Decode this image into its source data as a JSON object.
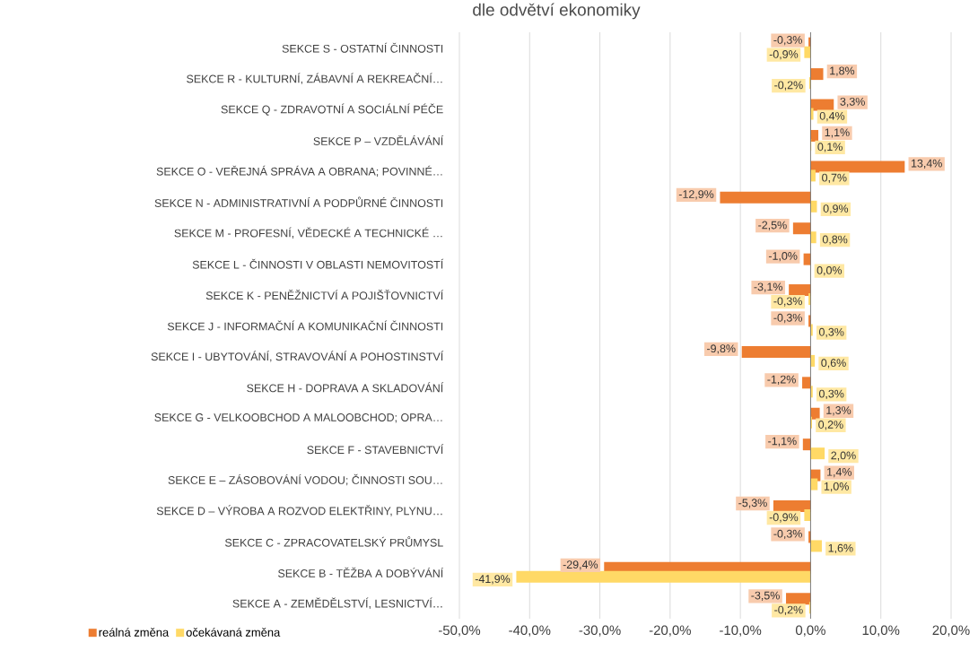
{
  "chart_data": {
    "type": "bar",
    "orientation": "horizontal",
    "title": "dle odvětví ekonomiky",
    "categories": [
      "SEKCE S - OSTATNÍ ČINNOSTI",
      "SEKCE R - KULTURNÍ, ZÁBAVNÍ A REKREAČNÍ…",
      "SEKCE Q - ZDRAVOTNÍ A SOCIÁLNÍ PÉČE",
      "SEKCE P – VZDĚLÁVÁNÍ",
      "SEKCE O - VEŘEJNÁ SPRÁVA A OBRANA; POVINNÉ…",
      "SEKCE N - ADMINISTRATIVNÍ A PODPŮRNÉ ČINNOSTI",
      "SEKCE M - PROFESNÍ, VĚDECKÉ A TECHNICKÉ …",
      "SEKCE L - ČINNOSTI V OBLASTI NEMOVITOSTÍ",
      "SEKCE K - PENĚŽNICTVÍ A POJIŠŤOVNICTVÍ",
      "SEKCE J - INFORMAČNÍ A KOMUNIKAČNÍ ČINNOSTI",
      "SEKCE I - UBYTOVÁNÍ, STRAVOVÁNÍ A POHOSTINSTVÍ",
      "SEKCE H - DOPRAVA A SKLADOVÁNÍ",
      "SEKCE G - VELKOOBCHOD A MALOOBCHOD; OPRA…",
      "SEKCE F - STAVEBNICTVÍ",
      "SEKCE E – ZÁSOBOVÁNÍ VODOU; ČINNOSTI SOU…",
      "SEKCE D – VÝROBA A ROZVOD ELEKTŘINY, PLYNU…",
      "SEKCE C - ZPRACOVATELSKÝ PRŮMYSL",
      "SEKCE B - TĚŽBA A DOBÝVÁNÍ",
      "SEKCE A - ZEMĚDĚLSTVÍ, LESNICTVÍ…"
    ],
    "series": [
      {
        "name": "reálná změna",
        "color": "#ed7d31",
        "values": [
          -0.3,
          1.8,
          3.3,
          1.1,
          13.4,
          -12.9,
          -2.5,
          -1.0,
          -3.1,
          -0.3,
          -9.8,
          -1.2,
          1.3,
          -1.1,
          1.4,
          -5.3,
          -0.3,
          -29.4,
          -3.5
        ],
        "value_labels": [
          "-0,3%",
          "1,8%",
          "3,3%",
          "1,1%",
          "13,4%",
          "-12,9%",
          "-2,5%",
          "-1,0%",
          "-3,1%",
          "-0,3%",
          "-9,8%",
          "-1,2%",
          "1,3%",
          "-1,1%",
          "1,4%",
          "-5,3%",
          "-0,3%",
          "-29,4%",
          "-3,5%"
        ]
      },
      {
        "name": "očekávaná změna",
        "color": "#ffd966",
        "values": [
          -0.9,
          -0.2,
          0.4,
          0.1,
          0.7,
          0.9,
          0.8,
          0.0,
          -0.3,
          0.3,
          0.6,
          0.3,
          0.2,
          2.0,
          1.0,
          -0.9,
          1.6,
          -41.9,
          -0.2
        ],
        "value_labels": [
          "-0,9%",
          "-0,2%",
          "0,4%",
          "0,1%",
          "0,7%",
          "0,9%",
          "0,8%",
          "0,0%",
          "-0,3%",
          "0,3%",
          "0,6%",
          "0,3%",
          "0,2%",
          "2,0%",
          "1,0%",
          "-0,9%",
          "1,6%",
          "-41,9%",
          "-0,2%"
        ]
      }
    ],
    "xlim": [
      -50,
      20
    ],
    "xticks": [
      {
        "value": -50,
        "label": "-50,0%"
      },
      {
        "value": -40,
        "label": "-40,0%"
      },
      {
        "value": -30,
        "label": "-30,0%"
      },
      {
        "value": -20,
        "label": "-20,0%"
      },
      {
        "value": -10,
        "label": "-10,0%"
      },
      {
        "value": 0,
        "label": "0,0%"
      },
      {
        "value": 10,
        "label": "10,0%"
      },
      {
        "value": 20,
        "label": "20,0%"
      }
    ],
    "grid": "x",
    "legend": "bottom left"
  }
}
